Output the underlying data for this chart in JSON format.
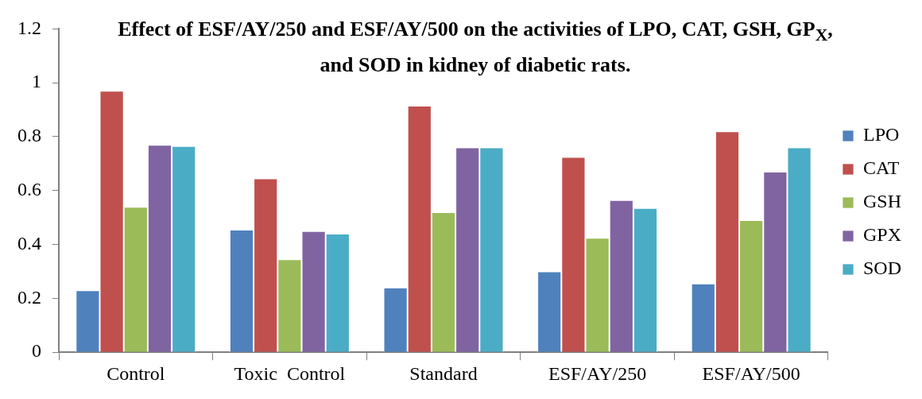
{
  "chart_data": {
    "type": "bar",
    "title": "Effect of ESF/AY/250 and ESF/AY/500 on the activities of LPO, CAT, GSH, GP$_{X}$, and SOD in kidney of diabetic rats.",
    "categories": [
      "Control",
      "Toxic  Control",
      "Standard",
      "ESF/AY/250",
      "ESF/AY/500"
    ],
    "series": [
      {
        "name": "LPO",
        "color": "#4f81bd",
        "values": [
          0.23,
          0.455,
          0.24,
          0.3,
          0.255
        ]
      },
      {
        "name": "CAT",
        "color": "#c0504d",
        "values": [
          0.97,
          0.645,
          0.915,
          0.725,
          0.82
        ]
      },
      {
        "name": "GSH",
        "color": "#9bbb59",
        "values": [
          0.54,
          0.345,
          0.52,
          0.425,
          0.49
        ]
      },
      {
        "name": "GPX",
        "color": "#8064a2",
        "values": [
          0.77,
          0.45,
          0.76,
          0.565,
          0.67
        ]
      },
      {
        "name": "SOD",
        "color": "#4bacc6",
        "values": [
          0.765,
          0.44,
          0.76,
          0.535,
          0.76
        ]
      }
    ],
    "ylim": [
      0,
      1.2
    ],
    "yticks": [
      0,
      0.2,
      0.4,
      0.6,
      0.8,
      1,
      1.2
    ],
    "grid": false,
    "legend": "right"
  }
}
